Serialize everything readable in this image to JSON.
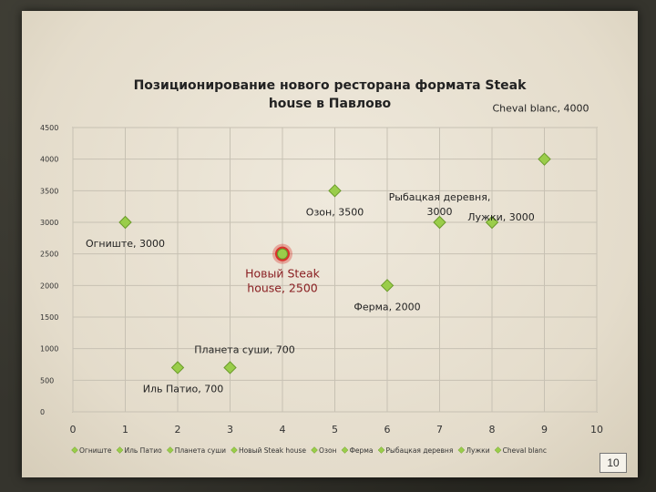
{
  "chart_data": {
    "type": "scatter",
    "title_lines": [
      "Позиционирование нового ресторана формата Steak",
      "house в Павлово"
    ],
    "xlim": [
      0,
      10
    ],
    "ylim": [
      0,
      4500
    ],
    "x_ticks": [
      0,
      1,
      2,
      3,
      4,
      5,
      6,
      7,
      8,
      9,
      10
    ],
    "y_ticks": [
      0,
      500,
      1000,
      1500,
      2000,
      2500,
      3000,
      3500,
      4000,
      4500
    ],
    "grid": true,
    "legend_position": "bottom",
    "series": [
      {
        "name": "Огниште",
        "x": 1,
        "y": 3000,
        "label_lines": [
          "Огниште, 3000"
        ],
        "highlight": false
      },
      {
        "name": "Иль Патио",
        "x": 2,
        "y": 700,
        "label_lines": [
          "Иль Патио, 700"
        ],
        "highlight": false
      },
      {
        "name": "Планета суши",
        "x": 3,
        "y": 700,
        "label_lines": [
          "Планета суши, 700"
        ],
        "highlight": false
      },
      {
        "name": "Новый Steak house",
        "x": 4,
        "y": 2500,
        "label_lines": [
          "Новый Steak",
          "house, 2500"
        ],
        "highlight": true
      },
      {
        "name": "Озон",
        "x": 5,
        "y": 3500,
        "label_lines": [
          "Озон, 3500"
        ],
        "highlight": false
      },
      {
        "name": "Ферма",
        "x": 6,
        "y": 2000,
        "label_lines": [
          "Ферма, 2000"
        ],
        "highlight": false
      },
      {
        "name": "Рыбацкая деревня",
        "x": 7,
        "y": 3000,
        "label_lines": [
          "Рыбацкая деревня,",
          "3000"
        ],
        "highlight": false
      },
      {
        "name": "Лужки",
        "x": 8,
        "y": 3000,
        "label_lines": [
          "Лужки, 3000"
        ],
        "highlight": false
      },
      {
        "name": "Cheval blanc",
        "x": 9,
        "y": 4000,
        "label_lines": [
          "Cheval blanc, 4000"
        ],
        "highlight": false
      }
    ],
    "colors": {
      "marker": "#9acd4a",
      "marker_dark": "#6a9a2a",
      "highlight_ring": "#d9322c",
      "highlight_label": "#8a1f22",
      "grid": "#c7c1b3",
      "axis": "#8a8578"
    }
  },
  "page_number": "10"
}
